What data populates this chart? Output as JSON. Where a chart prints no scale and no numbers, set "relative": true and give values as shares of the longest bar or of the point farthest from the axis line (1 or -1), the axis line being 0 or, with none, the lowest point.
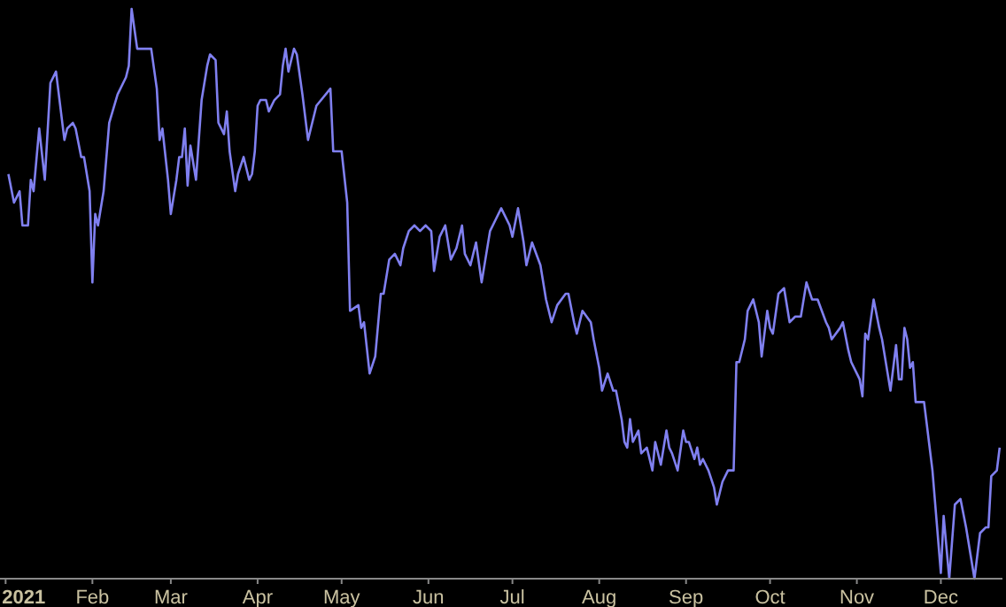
{
  "chart_data": {
    "type": "line",
    "relative": true,
    "marker": "none",
    "x": [
      "2021-01-02",
      "2021-01-04",
      "2021-01-06",
      "2021-01-07",
      "2021-01-09",
      "2021-01-10",
      "2021-01-11",
      "2021-01-13",
      "2021-01-15",
      "2021-01-17",
      "2021-01-19",
      "2021-01-22",
      "2021-01-23",
      "2021-01-25",
      "2021-01-26",
      "2021-01-28",
      "2021-01-29",
      "2021-01-31",
      "2021-02-01",
      "2021-02-02",
      "2021-02-03",
      "2021-02-05",
      "2021-02-07",
      "2021-02-10",
      "2021-02-13",
      "2021-02-14",
      "2021-02-15",
      "2021-02-17",
      "2021-02-20",
      "2021-02-22",
      "2021-02-24",
      "2021-02-25",
      "2021-02-26",
      "2021-02-28",
      "2021-03-01",
      "2021-03-03",
      "2021-03-04",
      "2021-03-05",
      "2021-03-06",
      "2021-03-07",
      "2021-03-08",
      "2021-03-10",
      "2021-03-12",
      "2021-03-14",
      "2021-03-15",
      "2021-03-17",
      "2021-03-18",
      "2021-03-20",
      "2021-03-21",
      "2021-03-22",
      "2021-03-24",
      "2021-03-25",
      "2021-03-27",
      "2021-03-29",
      "2021-03-30",
      "2021-03-31",
      "2021-04-01",
      "2021-04-02",
      "2021-04-04",
      "2021-04-05",
      "2021-04-07",
      "2021-04-09",
      "2021-04-10",
      "2021-04-11",
      "2021-04-12",
      "2021-04-14",
      "2021-04-15",
      "2021-04-17",
      "2021-04-19",
      "2021-04-20",
      "2021-04-22",
      "2021-04-27",
      "2021-04-28",
      "2021-05-01",
      "2021-05-03",
      "2021-05-04",
      "2021-05-07",
      "2021-05-08",
      "2021-05-09",
      "2021-05-11",
      "2021-05-13",
      "2021-05-15",
      "2021-05-16",
      "2021-05-18",
      "2021-05-20",
      "2021-05-22",
      "2021-05-23",
      "2021-05-25",
      "2021-05-27",
      "2021-05-29",
      "2021-05-31",
      "2021-06-02",
      "2021-06-03",
      "2021-06-05",
      "2021-06-07",
      "2021-06-09",
      "2021-06-11",
      "2021-06-13",
      "2021-06-14",
      "2021-06-16",
      "2021-06-18",
      "2021-06-20",
      "2021-06-23",
      "2021-06-25",
      "2021-06-27",
      "2021-06-30",
      "2021-07-01",
      "2021-07-03",
      "2021-07-05",
      "2021-07-06",
      "2021-07-08",
      "2021-07-11",
      "2021-07-13",
      "2021-07-15",
      "2021-07-17",
      "2021-07-20",
      "2021-07-21",
      "2021-07-23",
      "2021-07-24",
      "2021-07-26",
      "2021-07-29",
      "2021-07-30",
      "2021-08-01",
      "2021-08-02",
      "2021-08-04",
      "2021-08-06",
      "2021-08-07",
      "2021-08-09",
      "2021-08-10",
      "2021-08-11",
      "2021-08-12",
      "2021-08-13",
      "2021-08-15",
      "2021-08-16",
      "2021-08-18",
      "2021-08-20",
      "2021-08-21",
      "2021-08-23",
      "2021-08-25",
      "2021-08-26",
      "2021-08-27",
      "2021-08-29",
      "2021-08-31",
      "2021-09-01",
      "2021-09-02",
      "2021-09-04",
      "2021-09-05",
      "2021-09-06",
      "2021-09-07",
      "2021-09-09",
      "2021-09-11",
      "2021-09-12",
      "2021-09-14",
      "2021-09-16",
      "2021-09-18",
      "2021-09-19",
      "2021-09-20",
      "2021-09-22",
      "2021-09-23",
      "2021-09-25",
      "2021-09-27",
      "2021-09-28",
      "2021-09-30",
      "2021-10-01",
      "2021-10-02",
      "2021-10-04",
      "2021-10-06",
      "2021-10-08",
      "2021-10-10",
      "2021-10-12",
      "2021-10-14",
      "2021-10-16",
      "2021-10-18",
      "2021-10-21",
      "2021-10-22",
      "2021-10-23",
      "2021-10-26",
      "2021-10-27",
      "2021-10-29",
      "2021-10-30",
      "2021-11-01",
      "2021-11-02",
      "2021-11-03",
      "2021-11-04",
      "2021-11-05",
      "2021-11-07",
      "2021-11-09",
      "2021-11-10",
      "2021-11-12",
      "2021-11-13",
      "2021-11-15",
      "2021-11-16",
      "2021-11-17",
      "2021-11-18",
      "2021-11-19",
      "2021-11-20",
      "2021-11-21",
      "2021-11-22",
      "2021-11-25",
      "2021-11-28",
      "2021-12-01",
      "2021-12-02",
      "2021-12-04",
      "2021-12-06",
      "2021-12-08",
      "2021-12-10",
      "2021-12-13",
      "2021-12-15",
      "2021-12-17",
      "2021-12-18",
      "2021-12-19",
      "2021-12-21",
      "2021-12-22"
    ],
    "series": [
      {
        "color": "#8080f0",
        "values": [
          0.71,
          0.66,
          0.68,
          0.62,
          0.62,
          0.7,
          0.68,
          0.79,
          0.7,
          0.87,
          0.89,
          0.77,
          0.79,
          0.8,
          0.79,
          0.74,
          0.74,
          0.68,
          0.52,
          0.64,
          0.62,
          0.68,
          0.8,
          0.85,
          0.88,
          0.9,
          1.0,
          0.93,
          0.93,
          0.93,
          0.86,
          0.77,
          0.79,
          0.7,
          0.64,
          0.7,
          0.74,
          0.74,
          0.79,
          0.69,
          0.76,
          0.7,
          0.84,
          0.9,
          0.92,
          0.91,
          0.8,
          0.78,
          0.82,
          0.75,
          0.68,
          0.71,
          0.74,
          0.7,
          0.71,
          0.75,
          0.83,
          0.84,
          0.84,
          0.82,
          0.84,
          0.85,
          0.9,
          0.93,
          0.89,
          0.93,
          0.92,
          0.85,
          0.77,
          0.79,
          0.83,
          0.86,
          0.75,
          0.75,
          0.66,
          0.47,
          0.48,
          0.44,
          0.45,
          0.36,
          0.39,
          0.5,
          0.5,
          0.56,
          0.57,
          0.55,
          0.58,
          0.61,
          0.62,
          0.61,
          0.62,
          0.61,
          0.54,
          0.6,
          0.62,
          0.56,
          0.58,
          0.62,
          0.57,
          0.55,
          0.59,
          0.52,
          0.61,
          0.63,
          0.65,
          0.62,
          0.6,
          0.65,
          0.59,
          0.55,
          0.59,
          0.55,
          0.49,
          0.45,
          0.48,
          0.5,
          0.5,
          0.45,
          0.43,
          0.47,
          0.45,
          0.42,
          0.37,
          0.33,
          0.36,
          0.33,
          0.33,
          0.28,
          0.24,
          0.23,
          0.28,
          0.24,
          0.26,
          0.22,
          0.23,
          0.19,
          0.24,
          0.2,
          0.26,
          0.23,
          0.22,
          0.19,
          0.26,
          0.24,
          0.24,
          0.21,
          0.23,
          0.2,
          0.21,
          0.19,
          0.16,
          0.13,
          0.17,
          0.19,
          0.19,
          0.38,
          0.38,
          0.42,
          0.47,
          0.49,
          0.45,
          0.39,
          0.47,
          0.44,
          0.43,
          0.5,
          0.51,
          0.45,
          0.46,
          0.46,
          0.52,
          0.49,
          0.49,
          0.45,
          0.44,
          0.42,
          0.44,
          0.45,
          0.4,
          0.38,
          0.36,
          0.35,
          0.32,
          0.43,
          0.42,
          0.49,
          0.44,
          0.42,
          0.36,
          0.33,
          0.41,
          0.35,
          0.35,
          0.44,
          0.42,
          0.37,
          0.38,
          0.31,
          0.31,
          0.19,
          0.01,
          0.11,
          0,
          0.13,
          0.14,
          0.09,
          0,
          0.08,
          0.09,
          0.09,
          0.18,
          0.19,
          0.23
        ]
      }
    ],
    "xlim": [
      "2020-12-30",
      "2021-12-23"
    ],
    "xticks": [
      {
        "value": "2021-01-01",
        "label": "2021"
      },
      {
        "value": "2021-02-01",
        "label": "Feb"
      },
      {
        "value": "2021-03-01",
        "label": "Mar"
      },
      {
        "value": "2021-04-01",
        "label": "Apr"
      },
      {
        "value": "2021-05-01",
        "label": "May"
      },
      {
        "value": "2021-06-01",
        "label": "Jun"
      },
      {
        "value": "2021-07-01",
        "label": "Jul"
      },
      {
        "value": "2021-08-01",
        "label": "Aug"
      },
      {
        "value": "2021-09-01",
        "label": "Sep"
      },
      {
        "value": "2021-10-01",
        "label": "Oct"
      },
      {
        "value": "2021-11-01",
        "label": "Nov"
      },
      {
        "value": "2021-12-01",
        "label": "Dec"
      }
    ]
  }
}
